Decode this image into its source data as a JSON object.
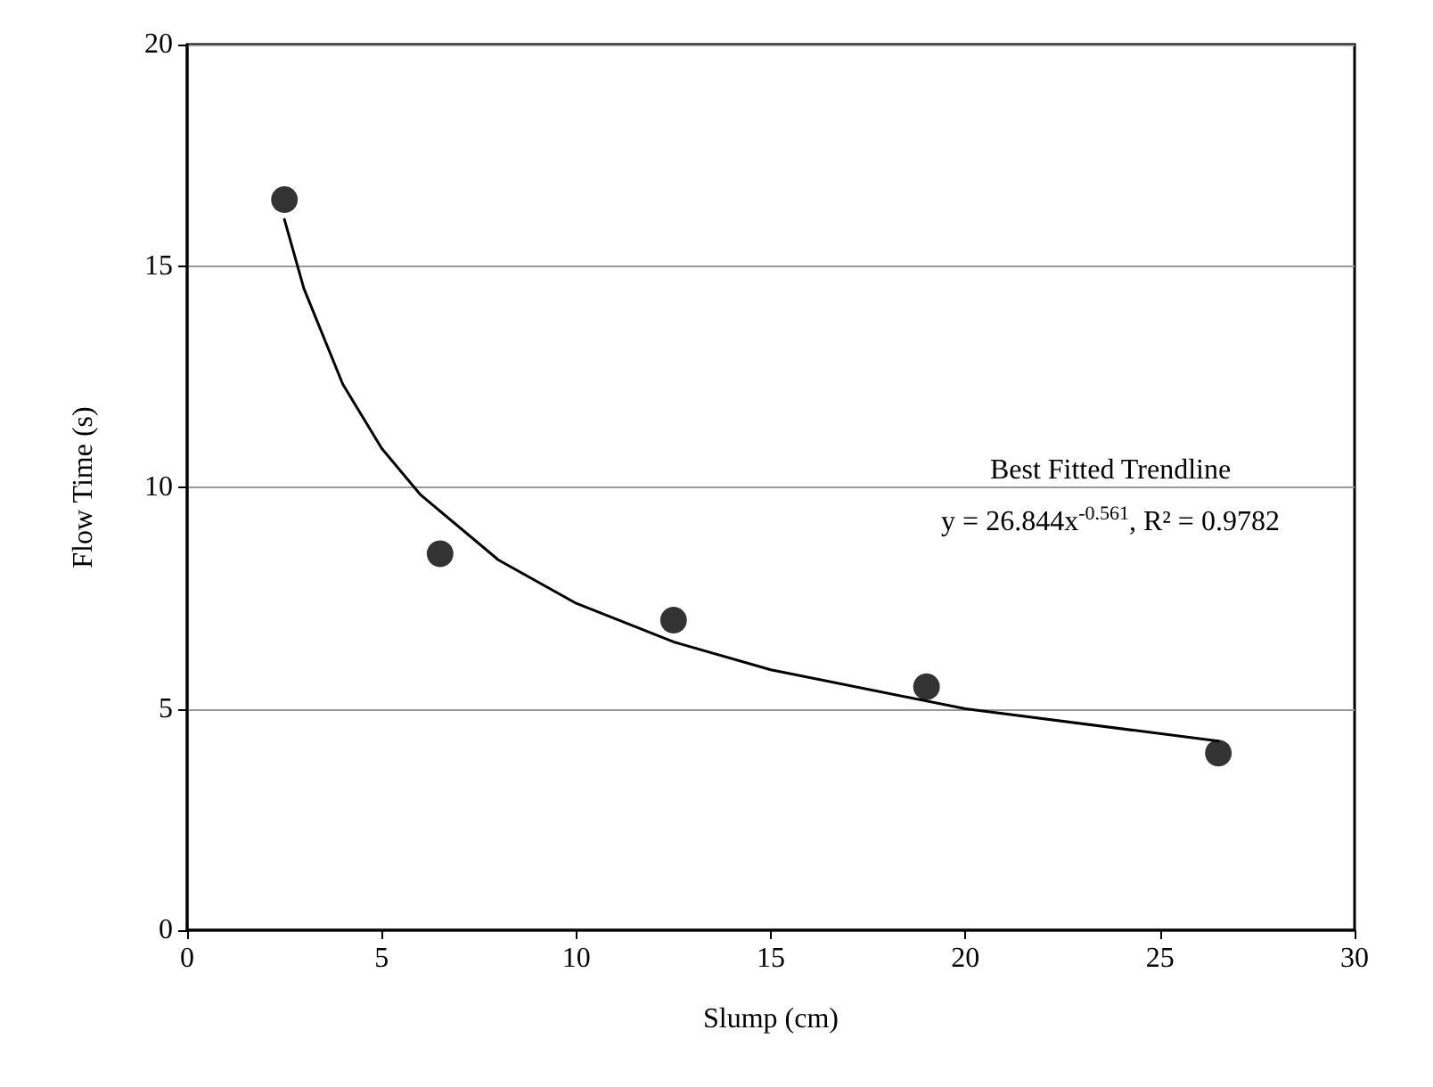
{
  "chart_data": {
    "type": "scatter",
    "xlabel": "Slump (cm)",
    "ylabel": "Flow Time (s)",
    "xlim": [
      0,
      30
    ],
    "xticks": [
      0,
      5,
      10,
      15,
      20,
      25,
      30
    ],
    "ylim": [
      0,
      20
    ],
    "yticks": [
      0,
      5,
      10,
      15,
      20
    ],
    "grid": "y",
    "series": [
      {
        "color": "#000000",
        "marker": "circle",
        "x": [
          2.5,
          6.5,
          12.5,
          19,
          26.5
        ],
        "values": [
          16.5,
          8.5,
          7,
          5.5,
          4
        ]
      },
      {
        "type": "line",
        "color": "#000000",
        "marker": "none",
        "line_style": "solid",
        "x": [
          2.5,
          3,
          4,
          5,
          6,
          8,
          10,
          12.5,
          15,
          20,
          26.5
        ],
        "values": [
          16.05,
          14.49,
          12.33,
          10.88,
          9.83,
          8.36,
          7.38,
          6.51,
          5.88,
          5.0,
          4.27
        ]
      }
    ],
    "annotations": [
      "Best Fitted Trendline",
      "y = 26.844x$^{-0.561}$, R² = 0.9782"
    ]
  }
}
